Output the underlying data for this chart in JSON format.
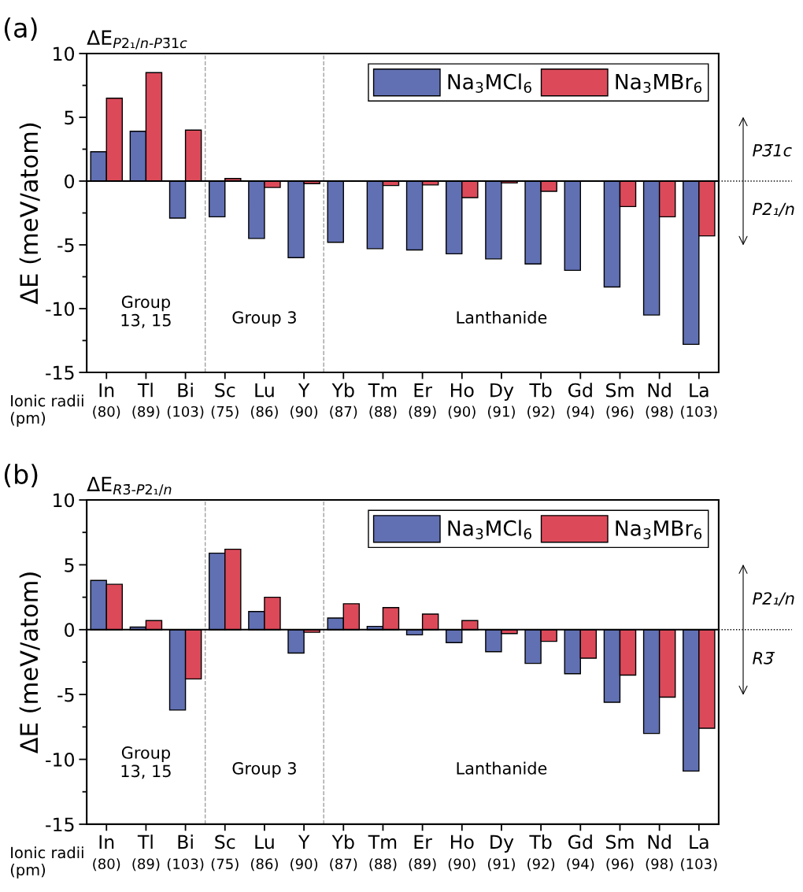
{
  "chart_data": [
    {
      "type": "bar",
      "title": "ΔE$_{P2₁/n-P3̄1c}$",
      "ylabel": "ΔE (meV/atom)",
      "categories": [
        "In\n(80)",
        "Tl\n(89)",
        "Bi\n(103)",
        "Sc\n(75)",
        "Lu\n(86)",
        "Y\n(90)",
        "Yb\n(87)",
        "Tm\n(88)",
        "Er\n(89)",
        "Ho\n(90)",
        "Dy\n(91)",
        "Tb\n(92)",
        "Gd\n(94)",
        "Sm\n(96)",
        "Nd\n(98)",
        "La\n(103)"
      ],
      "series": [
        {
          "name": "Na$_{3}$MCl$_{6}$",
          "color": "#6170b3",
          "values": [
            2.3,
            3.9,
            -2.9,
            -2.8,
            -4.5,
            -6.0,
            -4.8,
            -5.3,
            -5.4,
            -5.7,
            -6.1,
            -6.5,
            -7.0,
            -8.3,
            -10.5,
            -12.8
          ]
        },
        {
          "name": "Na$_{3}$MBr$_{6}$",
          "color": "#dc4a5a",
          "values": [
            6.5,
            8.5,
            4.0,
            0.2,
            -0.5,
            -0.2,
            null,
            -0.35,
            -0.3,
            -1.3,
            -0.15,
            -0.8,
            null,
            -2.0,
            -2.8,
            -4.3
          ]
        }
      ],
      "ylim": [
        -15,
        10
      ],
      "yticks": [
        -15,
        -10,
        -5,
        0,
        5,
        10
      ],
      "ref_lines": [
        {
          "axis": "y",
          "value": 0,
          "color": "#000000",
          "line_style": "solid"
        }
      ],
      "annotations": [
        "(a)",
        "Group\n13, 15",
        "Group 3",
        "Lanthanide",
        "P3̄1c",
        "P2₁/n",
        "Ionic radii\n(pm)"
      ],
      "legend": "top right",
      "grid": false
    },
    {
      "type": "bar",
      "title": "ΔE$_{R3̄-P2₁/n}$",
      "ylabel": "ΔE (meV/atom)",
      "categories": [
        "In\n(80)",
        "Tl\n(89)",
        "Bi\n(103)",
        "Sc\n(75)",
        "Lu\n(86)",
        "Y\n(90)",
        "Yb\n(87)",
        "Tm\n(88)",
        "Er\n(89)",
        "Ho\n(90)",
        "Dy\n(91)",
        "Tb\n(92)",
        "Gd\n(94)",
        "Sm\n(96)",
        "Nd\n(98)",
        "La\n(103)"
      ],
      "series": [
        {
          "name": "Na$_{3}$MCl$_{6}$",
          "color": "#6170b3",
          "values": [
            3.8,
            0.2,
            -6.2,
            5.9,
            1.4,
            -1.8,
            0.9,
            0.25,
            -0.4,
            -1.0,
            -1.7,
            -2.6,
            -3.4,
            -5.6,
            -8.0,
            -10.9
          ]
        },
        {
          "name": "Na$_{3}$MBr$_{6}$",
          "color": "#dc4a5a",
          "values": [
            3.5,
            0.7,
            -3.8,
            6.2,
            2.5,
            -0.2,
            2.0,
            1.7,
            1.2,
            0.7,
            -0.3,
            -0.9,
            -2.2,
            -3.5,
            -5.2,
            -7.6
          ]
        }
      ],
      "ylim": [
        -15,
        10
      ],
      "yticks": [
        -15,
        -10,
        -5,
        0,
        5,
        10
      ],
      "ref_lines": [
        {
          "axis": "y",
          "value": 0,
          "color": "#000000",
          "line_style": "solid"
        }
      ],
      "annotations": [
        "(b)",
        "Group\n13, 15",
        "Group 3",
        "Lanthanide",
        "P2₁/n",
        "R3̄",
        "Ionic radii\n(pm)"
      ],
      "legend": "top right",
      "grid": false
    }
  ]
}
